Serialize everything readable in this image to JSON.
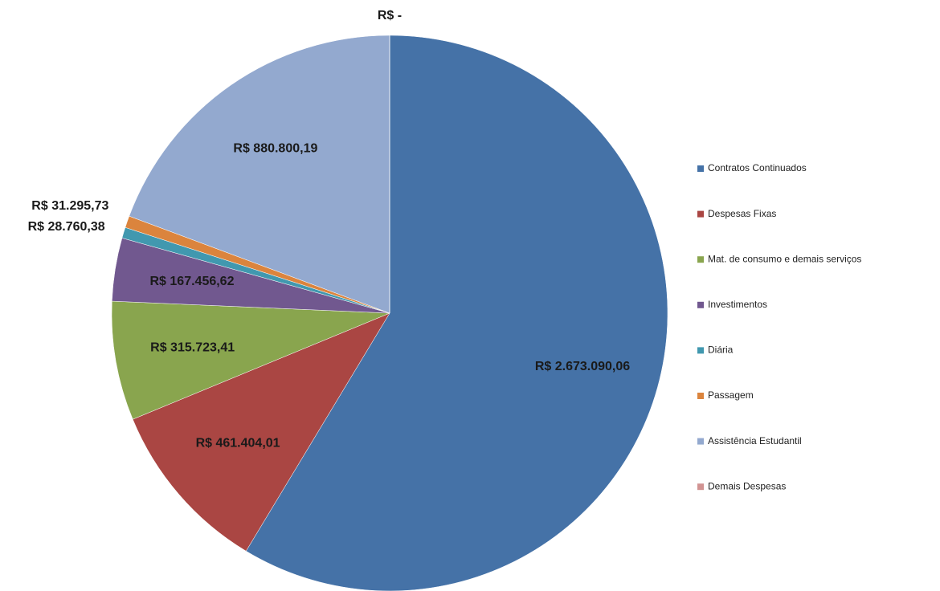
{
  "chart_data": {
    "type": "pie",
    "categories": [
      "Contratos Continuados",
      "Despesas Fixas",
      "Mat. de consumo e demais serviços",
      "Investimentos",
      "Diária",
      "Passagem",
      "Assistência Estudantil",
      "Demais Despesas"
    ],
    "values": [
      2673090.06,
      461404.01,
      315723.41,
      167456.62,
      28760.38,
      31295.73,
      880800.19,
      0
    ],
    "value_labels": [
      "R$ 2.673.090,06",
      "R$ 461.404,01",
      "R$ 315.723,41",
      "R$ 167.456,62",
      "R$ 28.760,38",
      "R$ 31.295,73",
      "R$ 880.800,19",
      "R$ -"
    ],
    "colors": [
      "#4572a7",
      "#aa4643",
      "#89a54e",
      "#71588f",
      "#4198af",
      "#db843d",
      "#93a9cf",
      "#d19392"
    ],
    "legend": "right"
  }
}
